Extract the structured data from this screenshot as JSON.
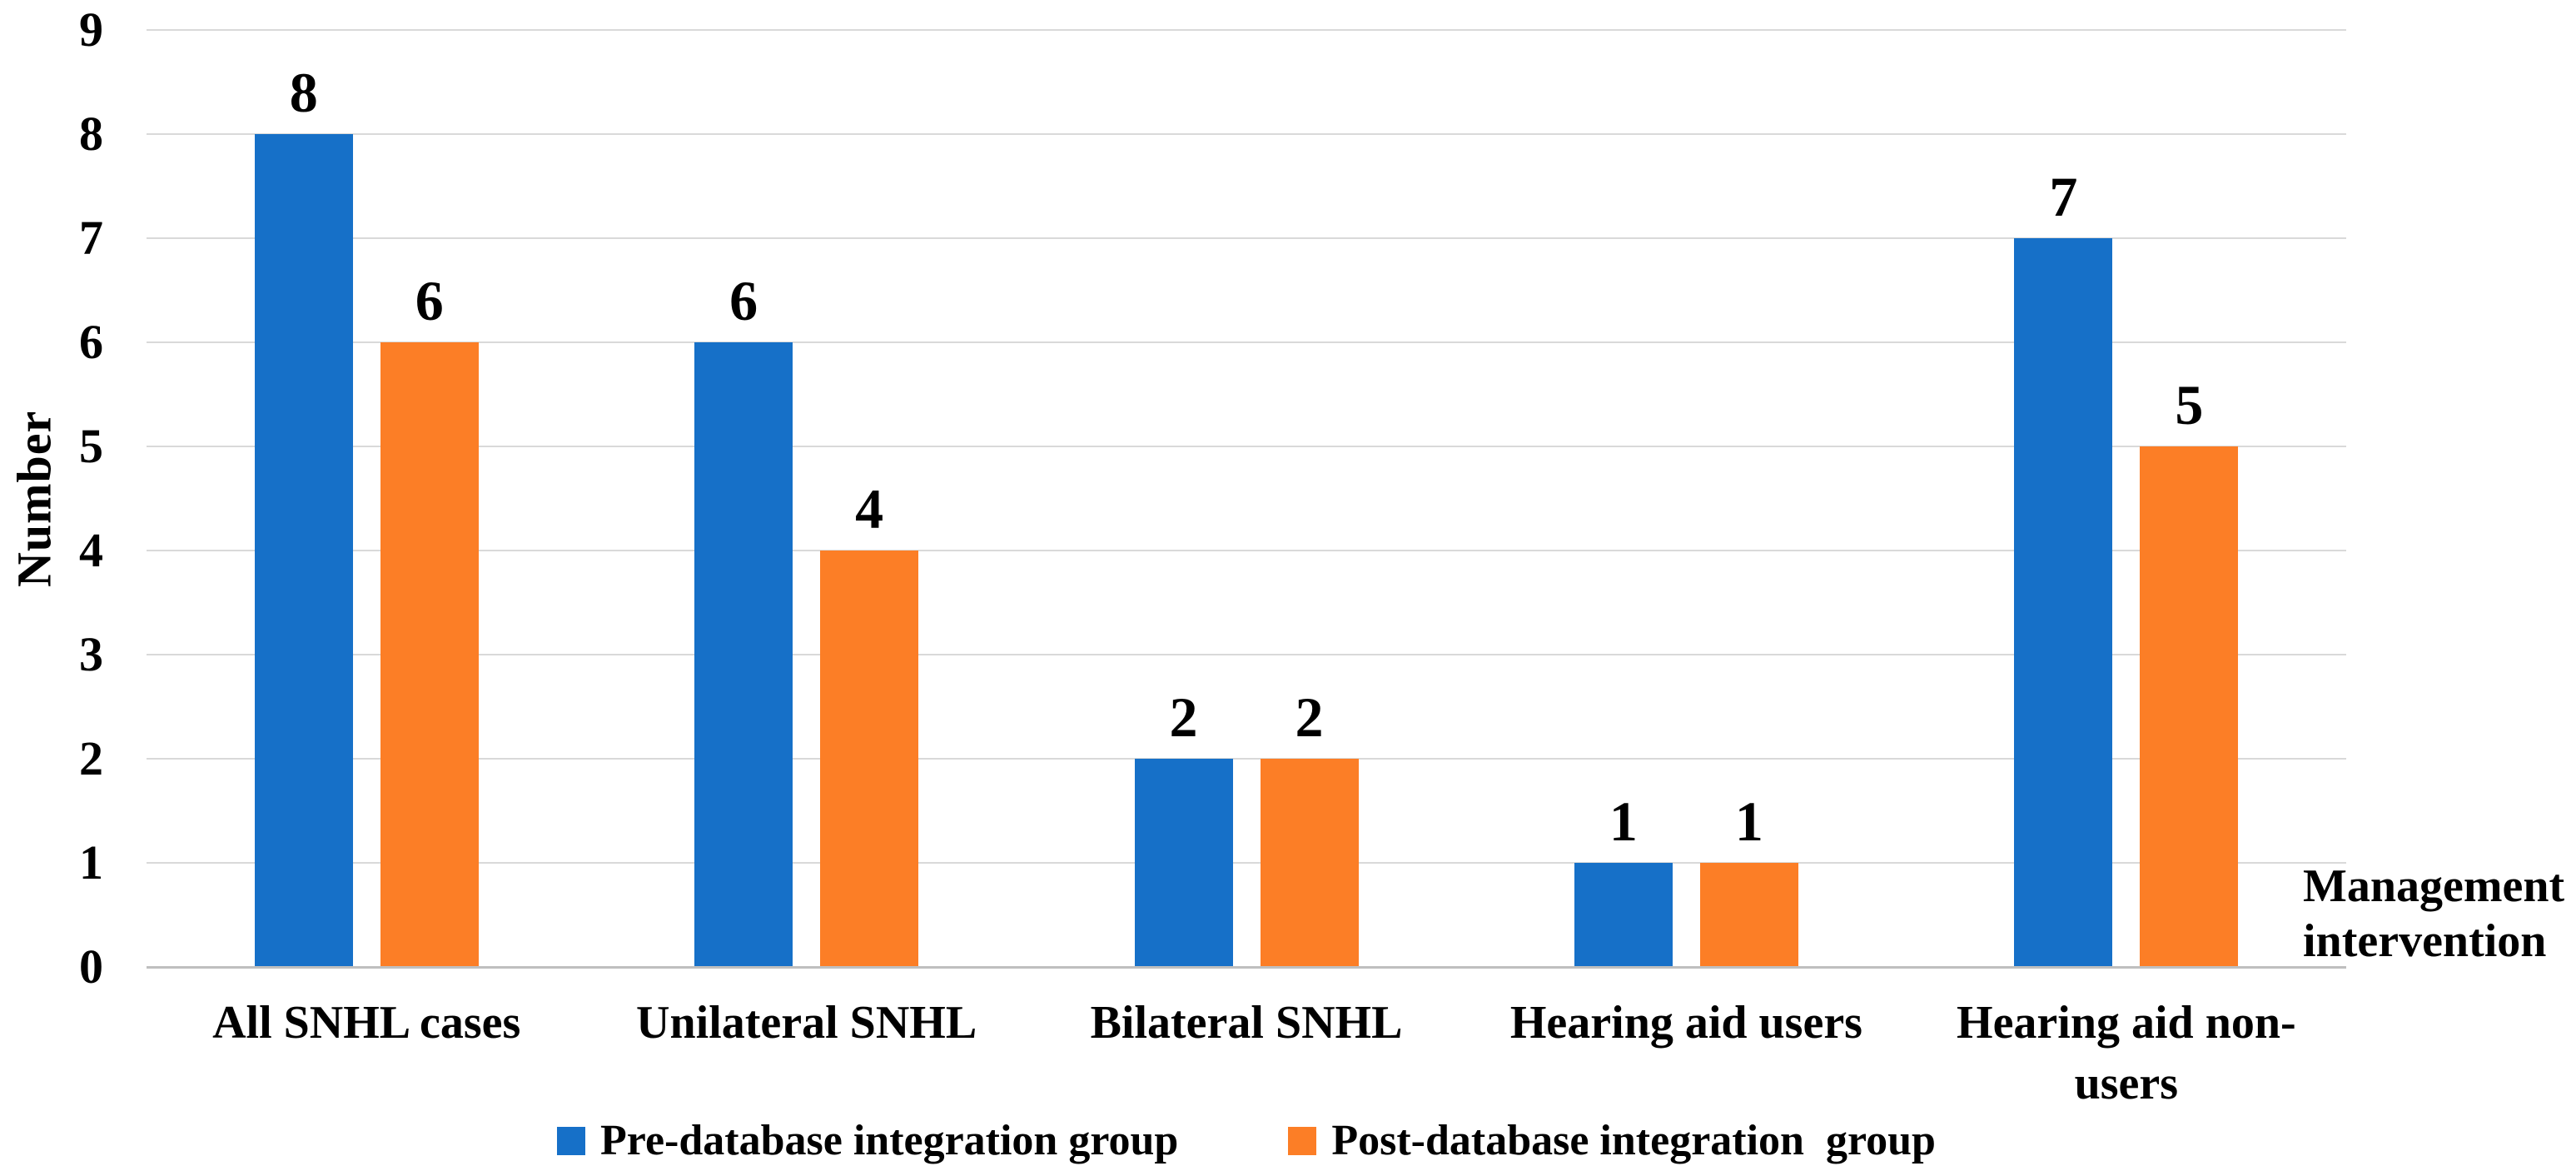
{
  "chart_data": {
    "type": "bar",
    "title": "",
    "categories": [
      "All SNHL cases",
      "Unilateral SNHL",
      "Bilateral SNHL",
      "Hearing aid users",
      "Hearing aid non-users"
    ],
    "series": [
      {
        "name": "Pre-database integration group",
        "color": "#1670C8",
        "values": [
          8,
          6,
          2,
          1,
          7
        ]
      },
      {
        "name": "Post-database integration  group",
        "color": "#FC7E26",
        "values": [
          6,
          4,
          2,
          1,
          5
        ]
      }
    ],
    "ylabel": "Number",
    "xlabel": "Management intervention",
    "ylim": [
      0,
      9
    ],
    "ytick_step": 1,
    "yticks": [
      "0",
      "1",
      "2",
      "3",
      "4",
      "5",
      "6",
      "7",
      "8",
      "9"
    ],
    "grid": true,
    "data_labels_shown": true,
    "legend_position": "bottom",
    "colors": {
      "pre_series": "#1670C8",
      "post_series": "#FC7E26",
      "gridline": "#D9D9D9",
      "axis_line": "#BFBFBF",
      "text": "#000000",
      "background": "#FFFFFF"
    }
  }
}
